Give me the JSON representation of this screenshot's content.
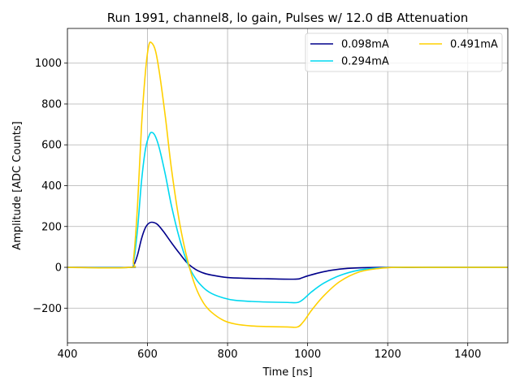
{
  "chart_data": {
    "type": "line",
    "title": "Run 1991, channel8, lo gain, Pulses w/ 12.0 dB Attenuation",
    "xlabel": "Time [ns]",
    "ylabel": "Amplitude [ADC Counts]",
    "xlim": [
      400,
      1500
    ],
    "ylim": [
      -370,
      1170
    ],
    "xticks": [
      400,
      600,
      800,
      1000,
      1200,
      1400
    ],
    "yticks": [
      -200,
      0,
      200,
      400,
      600,
      800,
      1000
    ],
    "grid": true,
    "legend_position": "top-right",
    "legend_columns": 2,
    "series": [
      {
        "name": "0.098mA",
        "color": "#00008b",
        "x": [
          400,
          555,
          565,
          575,
          585,
          595,
          605,
          615,
          625,
          640,
          660,
          680,
          700,
          720,
          740,
          760,
          800,
          850,
          900,
          970,
          985,
          1000,
          1030,
          1060,
          1100,
          1150,
          1200,
          1300,
          1500
        ],
        "y": [
          0,
          0,
          8,
          60,
          140,
          195,
          218,
          220,
          210,
          175,
          120,
          68,
          20,
          -10,
          -28,
          -38,
          -50,
          -54,
          -56,
          -58,
          -52,
          -42,
          -26,
          -14,
          -5,
          -1,
          0,
          0,
          0
        ]
      },
      {
        "name": "0.294mA",
        "color": "#00d8f0",
        "x": [
          400,
          555,
          565,
          575,
          585,
          595,
          605,
          612,
          620,
          630,
          645,
          660,
          680,
          700,
          720,
          740,
          760,
          790,
          820,
          860,
          900,
          950,
          975,
          990,
          1010,
          1040,
          1080,
          1130,
          1180,
          1220,
          1300,
          1500
        ],
        "y": [
          0,
          0,
          25,
          185,
          420,
          580,
          650,
          660,
          640,
          580,
          450,
          300,
          140,
          20,
          -55,
          -100,
          -128,
          -150,
          -162,
          -167,
          -170,
          -172,
          -172,
          -155,
          -120,
          -78,
          -40,
          -13,
          -3,
          0,
          0,
          0
        ]
      },
      {
        "name": "0.491mA",
        "color": "#ffd000",
        "x": [
          400,
          555,
          565,
          575,
          585,
          595,
          603,
          610,
          620,
          630,
          645,
          660,
          680,
          700,
          720,
          740,
          760,
          790,
          820,
          860,
          900,
          950,
          975,
          990,
          1010,
          1040,
          1080,
          1130,
          1180,
          1220,
          1300,
          1500
        ],
        "y": [
          0,
          0,
          40,
          300,
          690,
          960,
          1085,
          1100,
          1060,
          950,
          730,
          480,
          220,
          35,
          -95,
          -175,
          -220,
          -260,
          -278,
          -287,
          -290,
          -292,
          -292,
          -265,
          -210,
          -140,
          -70,
          -22,
          -5,
          0,
          0,
          0
        ]
      }
    ]
  }
}
